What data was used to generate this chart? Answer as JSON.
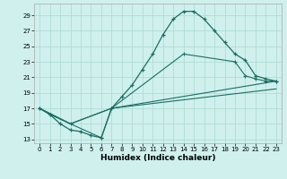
{
  "xlabel": "Humidex (Indice chaleur)",
  "bg_color": "#cff0ed",
  "grid_color": "#aad8d3",
  "line_color": "#1a6e64",
  "xlim": [
    -0.5,
    23.5
  ],
  "ylim": [
    12.5,
    30.5
  ],
  "yticks": [
    13,
    15,
    17,
    19,
    21,
    23,
    25,
    27,
    29
  ],
  "xticks": [
    0,
    1,
    2,
    3,
    4,
    5,
    6,
    7,
    8,
    9,
    10,
    11,
    12,
    13,
    14,
    15,
    16,
    17,
    18,
    19,
    20,
    21,
    22,
    23
  ],
  "line1_x": [
    0,
    1,
    2,
    3,
    4,
    5,
    6,
    7,
    8,
    9,
    10,
    11,
    12,
    13,
    14,
    15,
    16,
    17,
    18,
    19,
    20,
    21,
    22,
    23
  ],
  "line1_y": [
    17.0,
    16.2,
    15.0,
    14.2,
    14.0,
    13.5,
    13.2,
    17.0,
    18.5,
    20.0,
    22.0,
    24.0,
    26.5,
    28.5,
    29.5,
    29.5,
    28.5,
    27.0,
    25.5,
    24.0,
    23.2,
    21.2,
    20.8,
    20.5
  ],
  "line2_x": [
    0,
    1,
    3,
    6,
    7,
    14,
    19,
    20,
    21,
    22,
    23
  ],
  "line2_y": [
    17.0,
    16.2,
    15.0,
    13.2,
    17.0,
    24.0,
    23.0,
    21.2,
    20.8,
    20.5,
    20.5
  ],
  "line3_x": [
    0,
    3,
    7,
    23
  ],
  "line3_y": [
    17.0,
    15.0,
    17.0,
    20.5
  ],
  "line4_x": [
    0,
    3,
    7,
    23
  ],
  "line4_y": [
    17.0,
    15.0,
    17.0,
    19.5
  ]
}
